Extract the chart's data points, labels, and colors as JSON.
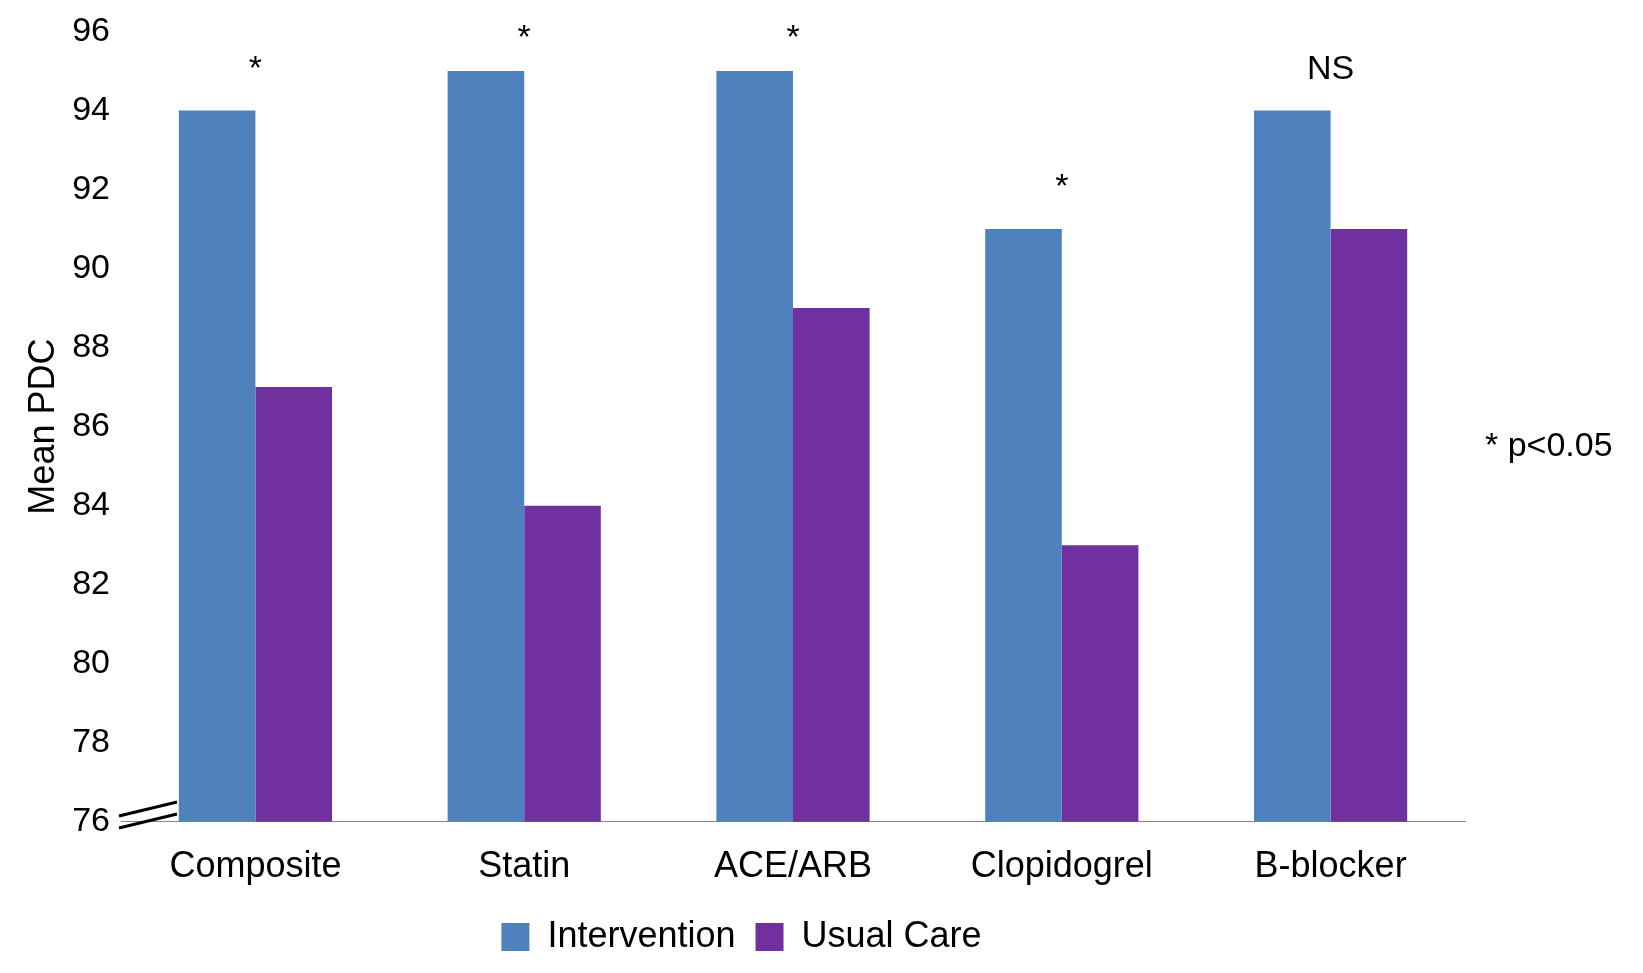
{
  "chart_data": {
    "type": "bar",
    "ylabel": "Mean PDC",
    "categories": [
      "Composite",
      "Statin",
      "ACE/ARB",
      "Clopidogrel",
      "B-blocker"
    ],
    "series": [
      {
        "name": "Intervention",
        "color": "#4f81bd",
        "values": [
          94,
          95,
          95,
          91,
          94
        ]
      },
      {
        "name": "Usual Care",
        "color": "#7030a0",
        "values": [
          87,
          84,
          89,
          83,
          91
        ]
      }
    ],
    "ylim": [
      76,
      96
    ],
    "yticks": [
      76,
      78,
      80,
      82,
      84,
      86,
      88,
      90,
      92,
      94,
      96
    ],
    "grid": false,
    "legend": "bottom",
    "annotations": [
      "*",
      "*",
      "*",
      "*",
      "NS",
      "* p<0.05"
    ]
  }
}
